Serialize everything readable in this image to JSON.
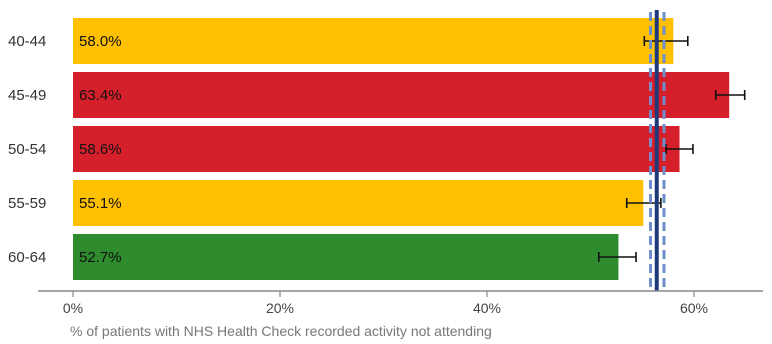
{
  "chart_data": {
    "type": "bar",
    "orientation": "horizontal",
    "categories": [
      "40-44",
      "45-49",
      "50-54",
      "55-59",
      "60-64"
    ],
    "values": [
      58.0,
      63.4,
      58.6,
      55.1,
      52.7
    ],
    "value_labels": [
      "58.0%",
      "63.4%",
      "58.6%",
      "55.1%",
      "52.7%"
    ],
    "bar_colors": [
      "#FFC000",
      "#D5202B",
      "#D5202B",
      "#FFC000",
      "#2E8B2E"
    ],
    "error_bars": [
      [
        55.2,
        59.4
      ],
      [
        62.1,
        64.9
      ],
      [
        57.3,
        59.9
      ],
      [
        53.5,
        56.8
      ],
      [
        50.8,
        54.4
      ]
    ],
    "reference_line": {
      "value": 56.4,
      "color": "#1F3A7A"
    },
    "reference_band": {
      "low": 55.8,
      "high": 57.1,
      "color": "#6E8FCC"
    },
    "xlim": [
      0,
      65
    ],
    "xticks": [
      0,
      20,
      40,
      60
    ],
    "xtick_labels": [
      "0%",
      "20%",
      "40%",
      "60%"
    ],
    "xlabel": "% of patients with NHS Health Check recorded activity not attending",
    "grid": false
  }
}
